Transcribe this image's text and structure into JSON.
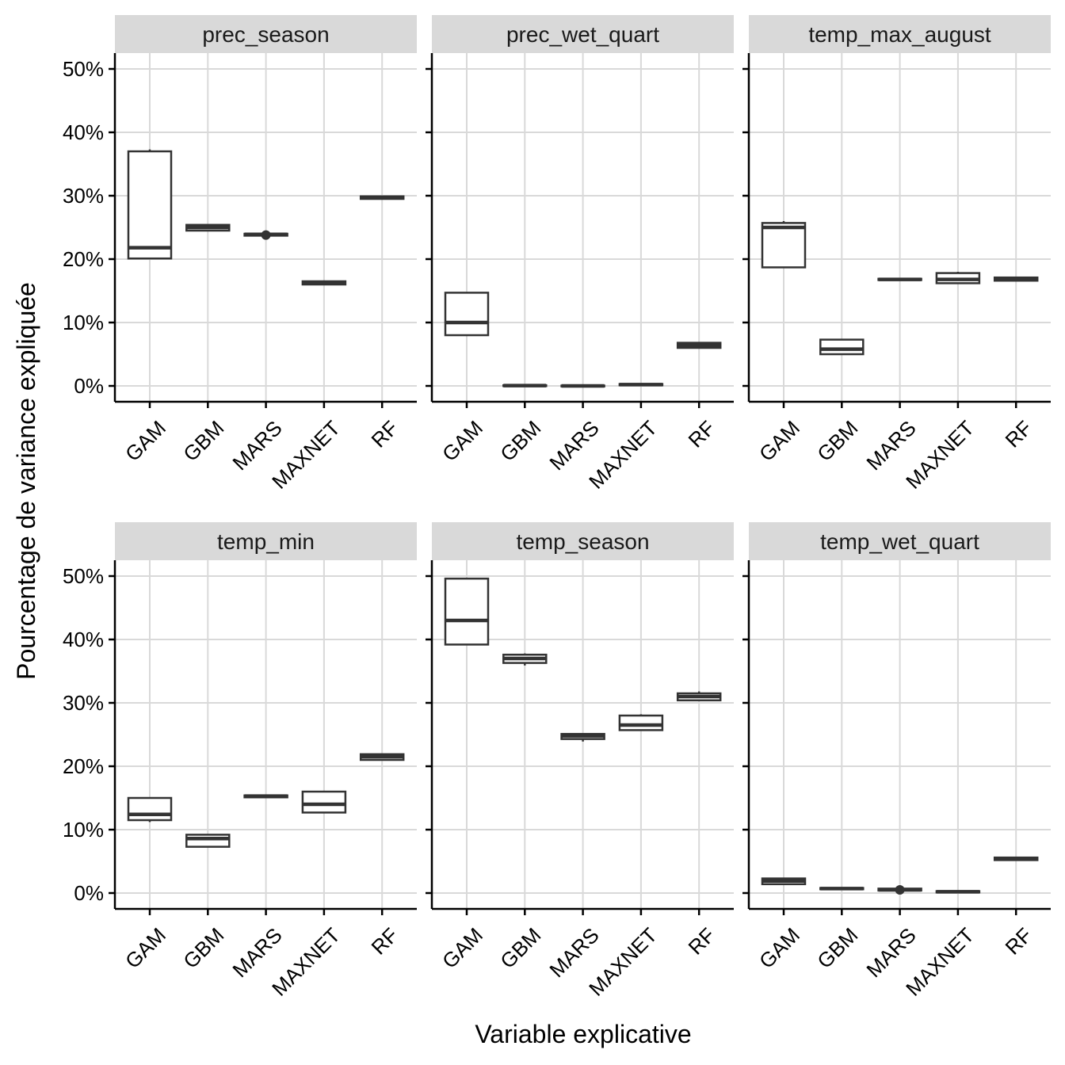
{
  "chart_data": {
    "type": "boxplot",
    "xlabel": "Variable explicative",
    "ylabel": "Pourcentage de variance expliquée",
    "ylim": [
      -2.5,
      52.5
    ],
    "y_ticks": [
      0,
      10,
      20,
      30,
      40,
      50
    ],
    "y_tick_labels": [
      "0%",
      "10%",
      "20%",
      "30%",
      "40%",
      "50%"
    ],
    "grid": true,
    "categories": [
      "GAM",
      "GBM",
      "MARS",
      "MAXNET",
      "RF"
    ],
    "panels": [
      {
        "title": "prec_season",
        "boxes": [
          {
            "q1": 20.1,
            "median": 21.8,
            "q3": 37.0,
            "whisker_low": 20.1,
            "whisker_high": 37.3
          },
          {
            "q1": 24.5,
            "median": 25.0,
            "q3": 25.4,
            "whisker_low": 24.5,
            "whisker_high": 25.4
          },
          {
            "q1": 23.7,
            "median": 23.9,
            "q3": 24.0,
            "whisker_low": 23.7,
            "whisker_high": 24.0,
            "outliers": [
              23.8
            ]
          },
          {
            "q1": 16.0,
            "median": 16.3,
            "q3": 16.5,
            "whisker_low": 16.0,
            "whisker_high": 16.5
          },
          {
            "q1": 29.5,
            "median": 29.7,
            "q3": 29.9,
            "whisker_low": 29.5,
            "whisker_high": 29.9
          }
        ]
      },
      {
        "title": "prec_wet_quart",
        "boxes": [
          {
            "q1": 8.0,
            "median": 10.0,
            "q3": 14.7,
            "whisker_low": 8.0,
            "whisker_high": 14.7
          },
          {
            "q1": 0.0,
            "median": 0.05,
            "q3": 0.1,
            "whisker_low": 0.0,
            "whisker_high": 0.1
          },
          {
            "q1": -0.05,
            "median": 0.0,
            "q3": 0.05,
            "whisker_low": -0.05,
            "whisker_high": 0.05
          },
          {
            "q1": 0.1,
            "median": 0.2,
            "q3": 0.3,
            "whisker_low": 0.1,
            "whisker_high": 0.3
          },
          {
            "q1": 6.0,
            "median": 6.4,
            "q3": 6.8,
            "whisker_low": 6.0,
            "whisker_high": 6.8
          }
        ]
      },
      {
        "title": "temp_max_august",
        "boxes": [
          {
            "q1": 18.7,
            "median": 25.0,
            "q3": 25.7,
            "whisker_low": 18.7,
            "whisker_high": 26.0
          },
          {
            "q1": 5.0,
            "median": 5.8,
            "q3": 7.3,
            "whisker_low": 5.0,
            "whisker_high": 7.3
          },
          {
            "q1": 16.7,
            "median": 16.8,
            "q3": 16.9,
            "whisker_low": 16.7,
            "whisker_high": 16.9
          },
          {
            "q1": 16.2,
            "median": 16.8,
            "q3": 17.8,
            "whisker_low": 16.2,
            "whisker_high": 18.0
          },
          {
            "q1": 16.6,
            "median": 16.9,
            "q3": 17.1,
            "whisker_low": 16.6,
            "whisker_high": 17.1
          }
        ]
      },
      {
        "title": "temp_min",
        "boxes": [
          {
            "q1": 11.5,
            "median": 12.4,
            "q3": 15.0,
            "whisker_low": 11.2,
            "whisker_high": 15.0
          },
          {
            "q1": 7.3,
            "median": 8.6,
            "q3": 9.2,
            "whisker_low": 7.3,
            "whisker_high": 9.2
          },
          {
            "q1": 15.1,
            "median": 15.3,
            "q3": 15.4,
            "whisker_low": 15.1,
            "whisker_high": 15.4
          },
          {
            "q1": 12.7,
            "median": 14.0,
            "q3": 16.0,
            "whisker_low": 12.7,
            "whisker_high": 16.0
          },
          {
            "q1": 21.0,
            "median": 21.5,
            "q3": 21.9,
            "whisker_low": 21.0,
            "whisker_high": 22.0
          }
        ]
      },
      {
        "title": "temp_season",
        "boxes": [
          {
            "q1": 39.2,
            "median": 43.0,
            "q3": 49.6,
            "whisker_low": 39.2,
            "whisker_high": 49.6
          },
          {
            "q1": 36.3,
            "median": 37.0,
            "q3": 37.6,
            "whisker_low": 35.9,
            "whisker_high": 37.8
          },
          {
            "q1": 24.3,
            "median": 24.8,
            "q3": 25.1,
            "whisker_low": 23.9,
            "whisker_high": 25.1
          },
          {
            "q1": 25.7,
            "median": 26.5,
            "q3": 28.0,
            "whisker_low": 25.7,
            "whisker_high": 28.2
          },
          {
            "q1": 30.4,
            "median": 31.0,
            "q3": 31.5,
            "whisker_low": 30.4,
            "whisker_high": 31.8
          }
        ]
      },
      {
        "title": "temp_wet_quart",
        "boxes": [
          {
            "q1": 1.4,
            "median": 1.9,
            "q3": 2.3,
            "whisker_low": 1.4,
            "whisker_high": 2.3
          },
          {
            "q1": 0.6,
            "median": 0.7,
            "q3": 0.8,
            "whisker_low": 0.6,
            "whisker_high": 0.8
          },
          {
            "q1": 0.4,
            "median": 0.5,
            "q3": 0.7,
            "whisker_low": 0.4,
            "whisker_high": 0.7,
            "outliers": [
              0.5
            ]
          },
          {
            "q1": 0.1,
            "median": 0.2,
            "q3": 0.3,
            "whisker_low": 0.1,
            "whisker_high": 0.3
          },
          {
            "q1": 5.2,
            "median": 5.4,
            "q3": 5.6,
            "whisker_low": 5.2,
            "whisker_high": 5.6
          }
        ]
      }
    ]
  }
}
